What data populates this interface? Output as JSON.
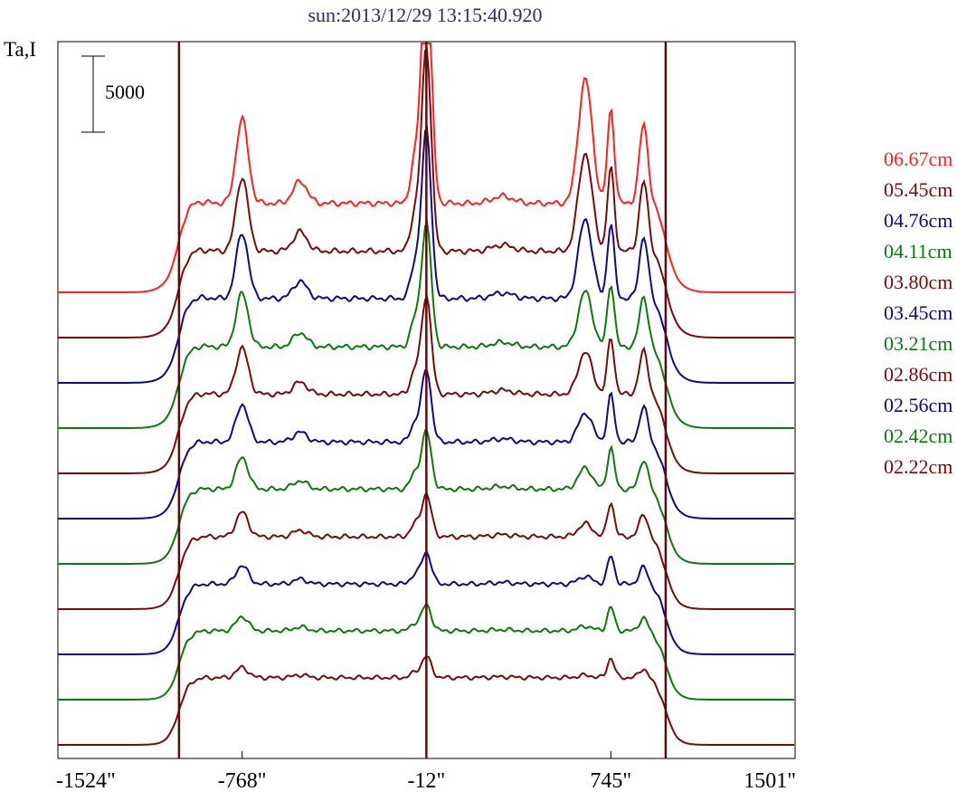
{
  "chart_data": {
    "type": "line",
    "title": "sun:2013/12/29 13:15:40.920",
    "ylabel": "Ta,I",
    "scale_bar_label": "5000",
    "x_ticks": [
      "-1524\"",
      "-768\"",
      "-12\"",
      "745\"",
      "1501\""
    ],
    "x_tick_values": [
      -1524,
      -768,
      -12,
      745,
      1501
    ],
    "xlim": [
      -1524,
      1501
    ],
    "vertical_markers": [
      -1027,
      -12,
      970
    ],
    "series": [
      {
        "name": "06.67cm",
        "color": "#ff2020",
        "level": 1.0
      },
      {
        "name": "05.45cm",
        "color": "#7a0a0a",
        "level": 0.9
      },
      {
        "name": "04.76cm",
        "color": "#0a0a8a",
        "level": 0.82
      },
      {
        "name": "04.11cm",
        "color": "#0a7a0a",
        "level": 0.7
      },
      {
        "name": "03.80cm",
        "color": "#7a0a0a",
        "level": 0.62
      },
      {
        "name": "03.45cm",
        "color": "#0a0a8a",
        "level": 0.52
      },
      {
        "name": "03.21cm",
        "color": "#0a7a0a",
        "level": 0.45
      },
      {
        "name": "02.86cm",
        "color": "#7a0a0a",
        "level": 0.36
      },
      {
        "name": "02.56cm",
        "color": "#0a0a8a",
        "level": 0.28
      },
      {
        "name": "02.42cm",
        "color": "#0a7a0a",
        "level": 0.22
      },
      {
        "name": "02.22cm",
        "color": "#7a0a0a",
        "level": 0.16
      }
    ],
    "grid": false
  }
}
